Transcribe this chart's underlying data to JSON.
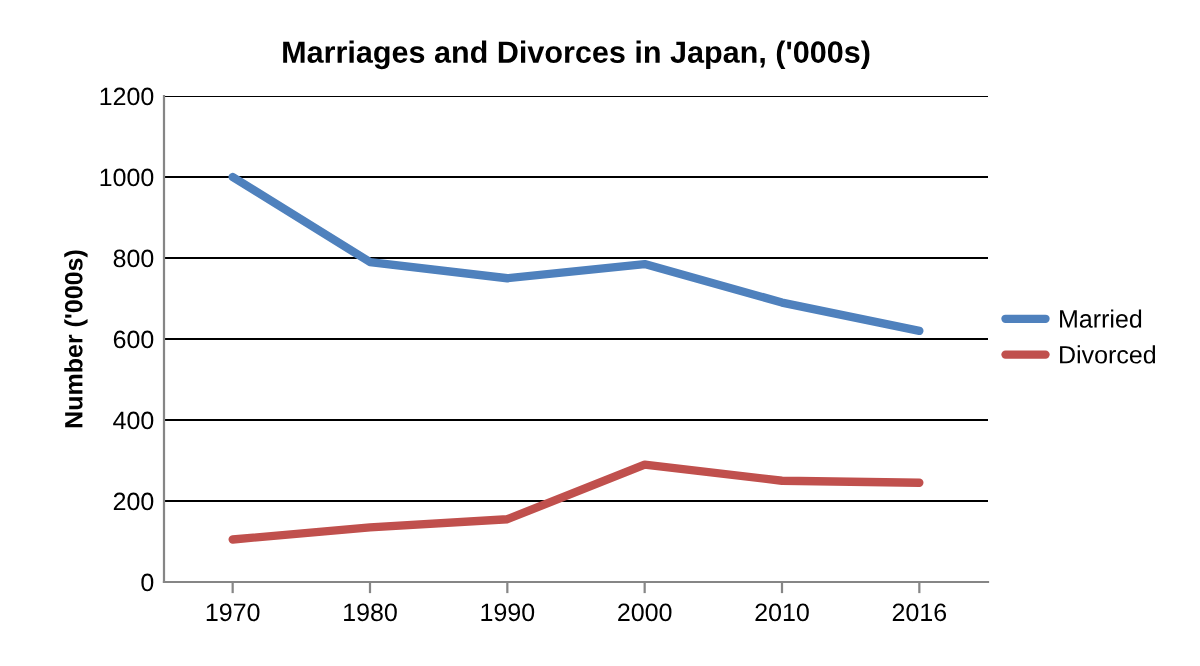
{
  "chart_data": {
    "type": "line",
    "title": "Marriages and Divorces in Japan, ('000s)",
    "ylabel": "Number ('000s)",
    "categories": [
      "1970",
      "1980",
      "1990",
      "2000",
      "2010",
      "2016"
    ],
    "series": [
      {
        "name": "Married",
        "color": "#4f81bd",
        "values": [
          1000,
          790,
          750,
          785,
          690,
          620
        ]
      },
      {
        "name": "Divorced",
        "color": "#c0504d",
        "values": [
          105,
          135,
          155,
          290,
          250,
          245
        ]
      }
    ],
    "ylim": [
      0,
      1200
    ],
    "yticks": [
      0,
      200,
      400,
      600,
      800,
      1000,
      1200
    ],
    "grid": "y",
    "legend": "right",
    "marker": "none",
    "line_style": "solid"
  }
}
